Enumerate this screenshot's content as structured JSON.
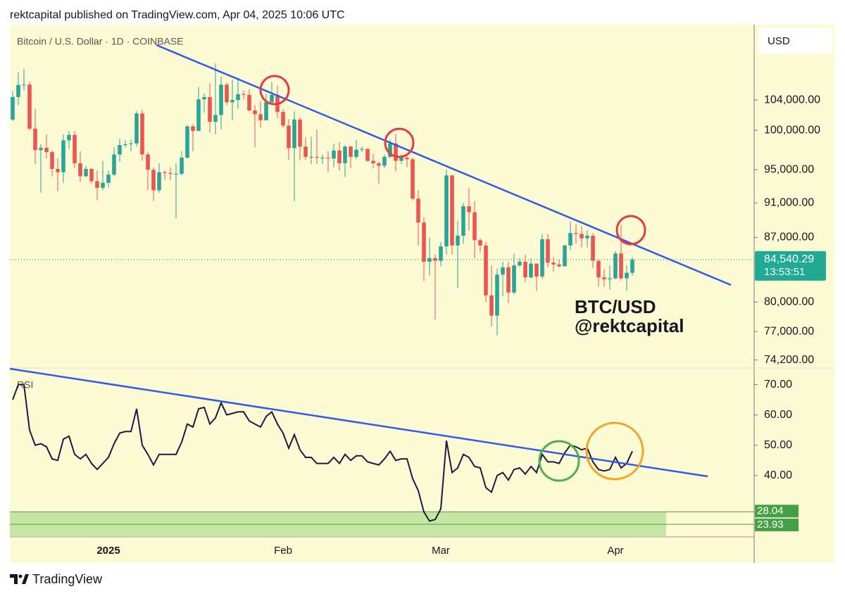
{
  "header": {
    "title": "rektcapital published on TradingView.com, Apr 04, 2025 10:06 UTC"
  },
  "footer": {
    "brand": "TradingView"
  },
  "chart_data": [
    {
      "type": "candlestick",
      "title": "Bitcoin / U.S. Dollar · 1D · COINBASE",
      "currency": "USD",
      "categories": [
        null,
        null,
        null,
        null,
        null,
        null,
        null,
        null,
        null,
        null,
        null,
        null,
        null,
        null,
        null,
        null,
        null,
        "2025",
        null,
        null,
        null,
        null,
        null,
        null,
        null,
        null,
        null,
        null,
        null,
        null,
        null,
        null,
        null,
        null,
        null,
        null,
        null,
        null,
        null,
        null,
        null,
        null,
        null,
        null,
        null,
        null,
        null,
        null,
        "Feb",
        null,
        null,
        null,
        null,
        null,
        null,
        null,
        null,
        null,
        null,
        null,
        null,
        null,
        null,
        null,
        null,
        null,
        null,
        null,
        null,
        null,
        null,
        null,
        null,
        null,
        null,
        null,
        "Mar",
        null,
        null,
        null,
        null,
        null,
        null,
        null,
        null,
        null,
        null,
        null,
        null,
        null,
        null,
        null,
        null,
        null,
        null,
        null,
        null,
        null,
        null,
        null,
        null,
        null,
        null,
        null,
        null,
        null,
        null,
        "Apr",
        null,
        null,
        null
      ],
      "open": [
        101400,
        104400,
        106050,
        106100,
        100200,
        97450,
        97750,
        97200,
        95100,
        94700,
        98700,
        99400,
        95800,
        94200,
        95100,
        93600,
        92800,
        93400,
        94400,
        96900,
        98100,
        98200,
        98300,
        102200,
        96900,
        95000,
        92500,
        94700,
        94600,
        94500,
        94500,
        96500,
        100500,
        99900,
        104100,
        104400,
        101100,
        102000,
        106100,
        103700,
        104000,
        104800,
        104700,
        102600,
        102100,
        101300,
        103700,
        104700,
        102400,
        100600,
        97700,
        101400,
        97900,
        96600,
        96600,
        96500,
        96500,
        96400,
        97400,
        95800,
        97900,
        96600,
        97500,
        97600,
        96100,
        95800,
        95500,
        96600,
        98300,
        96100,
        96500,
        96300,
        91500,
        88700,
        84300,
        84700,
        84400,
        86000,
        94300,
        86100,
        87200,
        90600,
        89900,
        86700,
        86100,
        80700,
        78600,
        82900,
        83700,
        81000,
        83900,
        84300,
        82600,
        84100,
        82700,
        86800,
        84200,
        84000,
        83800,
        86100,
        87500,
        87400,
        86900,
        87200,
        84400,
        82600,
        82400,
        82500,
        85200,
        82500,
        83100
      ],
      "high": [
        105200,
        107800,
        108300,
        106500,
        102800,
        98200,
        99500,
        97400,
        96400,
        99500,
        99900,
        99900,
        97300,
        95500,
        95200,
        94900,
        96100,
        94900,
        97800,
        98900,
        98700,
        98800,
        102500,
        102700,
        97200,
        95300,
        95800,
        94900,
        95300,
        95800,
        97300,
        100700,
        100800,
        105800,
        104900,
        106300,
        109100,
        107200,
        106400,
        106800,
        107100,
        105300,
        105500,
        103300,
        103800,
        104800,
        106500,
        106000,
        102800,
        101500,
        102500,
        101700,
        99100,
        99200,
        100100,
        96900,
        97300,
        98300,
        98500,
        98100,
        98000,
        98800,
        97900,
        97700,
        97000,
        96000,
        96900,
        98800,
        99500,
        96900,
        96700,
        96500,
        92500,
        89300,
        87000,
        85100,
        86500,
        95000,
        94400,
        88900,
        91000,
        92800,
        91200,
        86900,
        86500,
        83900,
        83600,
        84300,
        84300,
        85200,
        84700,
        85100,
        84700,
        84100,
        87400,
        87400,
        84800,
        84500,
        86200,
        88800,
        88500,
        88300,
        87800,
        87500,
        84600,
        83500,
        83900,
        85500,
        88500,
        83900,
        84800
      ],
      "low": [
        101200,
        103300,
        105300,
        100000,
        95700,
        92200,
        96400,
        94200,
        92400,
        93400,
        97600,
        95200,
        93500,
        94100,
        93300,
        91300,
        92500,
        92800,
        94200,
        96000,
        97800,
        97300,
        97900,
        96100,
        92500,
        91200,
        92200,
        93800,
        93700,
        89200,
        94300,
        96400,
        97300,
        99900,
        102300,
        99700,
        99500,
        100100,
        103300,
        101300,
        102800,
        104100,
        102500,
        97800,
        100300,
        101300,
        103400,
        101600,
        100300,
        96200,
        91200,
        96200,
        96200,
        95700,
        95700,
        95700,
        94700,
        95300,
        94900,
        94100,
        95200,
        96300,
        97200,
        96000,
        95200,
        93300,
        95200,
        96400,
        94800,
        95700,
        95300,
        91300,
        86100,
        82200,
        82800,
        78200,
        83800,
        85100,
        85100,
        81500,
        86300,
        87800,
        84700,
        85300,
        80000,
        77500,
        76600,
        80600,
        79900,
        80800,
        83700,
        82100,
        82500,
        81200,
        82400,
        83700,
        83200,
        83700,
        83800,
        85600,
        86300,
        85900,
        85900,
        83600,
        81600,
        81600,
        81300,
        82400,
        82300,
        81200,
        82800
      ],
      "close": [
        104400,
        106050,
        106100,
        100200,
        97450,
        97750,
        97200,
        95100,
        94700,
        98700,
        99400,
        95800,
        94200,
        95100,
        93600,
        92800,
        93400,
        94400,
        96900,
        98100,
        98200,
        98300,
        102200,
        96900,
        95000,
        92500,
        94700,
        94600,
        94500,
        94500,
        96500,
        100500,
        99900,
        104100,
        104400,
        101100,
        102000,
        106100,
        103700,
        104000,
        104800,
        104700,
        102600,
        102100,
        101300,
        103700,
        104700,
        102400,
        100600,
        97700,
        101400,
        97900,
        96600,
        96600,
        96500,
        96500,
        96400,
        97400,
        95800,
        97900,
        96600,
        97500,
        97600,
        96100,
        95800,
        95500,
        96600,
        98300,
        96100,
        96500,
        96300,
        91500,
        88700,
        84300,
        84700,
        84400,
        86000,
        94300,
        86100,
        87200,
        90600,
        89900,
        86700,
        86100,
        80700,
        78600,
        82900,
        83700,
        81000,
        83900,
        84300,
        82600,
        84100,
        82700,
        86800,
        84200,
        84000,
        83800,
        86100,
        87500,
        87400,
        86900,
        87200,
        84400,
        82600,
        82400,
        82500,
        85200,
        82500,
        83100,
        84540
      ],
      "up_color": "#26a69a",
      "down_color": "#ef5350",
      "log_scale": true,
      "grid": false,
      "ylim": [
        73500,
        114700
      ],
      "yticks": [
        {
          "value": 104000,
          "label": "104,000.00"
        },
        {
          "value": 100000,
          "label": "100,000.00"
        },
        {
          "value": 95000,
          "label": "95,000.00"
        },
        {
          "value": 91000,
          "label": "91,000.00"
        },
        {
          "value": 87000,
          "label": "87,000.00"
        },
        {
          "value": 80000,
          "label": "80,000.00"
        },
        {
          "value": 77000,
          "label": "77,000.00"
        },
        {
          "value": 74200,
          "label": "74,200.00"
        }
      ],
      "last_price": {
        "value": 84540.29,
        "label": "84,540.29"
      },
      "countdown": "13:53:51",
      "last_color": "#22ab94",
      "annotations": [
        "BTC/USD",
        "@rektcapital"
      ]
    },
    {
      "type": "line",
      "title": "RSI",
      "color": "#1c1848",
      "values": [
        65,
        70,
        70,
        55,
        50,
        50.5,
        49.5,
        45.5,
        45,
        52,
        53,
        47,
        45.5,
        47,
        44,
        42,
        44,
        46,
        50.5,
        54,
        54.5,
        54.5,
        62,
        50,
        47,
        43.5,
        47,
        47,
        47,
        47,
        51,
        57,
        56,
        62,
        62.5,
        57,
        59,
        64,
        60,
        60.5,
        61,
        61,
        58,
        57,
        56,
        59.5,
        61,
        57,
        54,
        49,
        53.5,
        48.5,
        46,
        46,
        44,
        44,
        44,
        46,
        44,
        47,
        45,
        46.5,
        46.5,
        44.5,
        44,
        43.5,
        45.5,
        48,
        45,
        45.5,
        45.5,
        39,
        35,
        28,
        25,
        25.5,
        29,
        51.5,
        41,
        42.5,
        47,
        46,
        43,
        42.5,
        36,
        34.5,
        40,
        41,
        38.5,
        42,
        42.5,
        40.5,
        43,
        41,
        47,
        44.5,
        44.5,
        44,
        47.5,
        50,
        49.5,
        48.5,
        49,
        44.5,
        42,
        41.5,
        42,
        46,
        42.5,
        44,
        48
      ],
      "ylim": [
        20,
        75
      ],
      "yticks": [
        {
          "value": 70,
          "label": "70.00"
        },
        {
          "value": 60,
          "label": "60.00"
        },
        {
          "value": 50,
          "label": "50.00"
        },
        {
          "value": 40,
          "label": "40.00"
        }
      ],
      "levels": [
        {
          "value": 28.04,
          "label": "28.04"
        },
        {
          "value": 23.93,
          "label": "23.93"
        }
      ],
      "level_color": "#43a047",
      "zone_color": "#c6e6a4"
    }
  ]
}
